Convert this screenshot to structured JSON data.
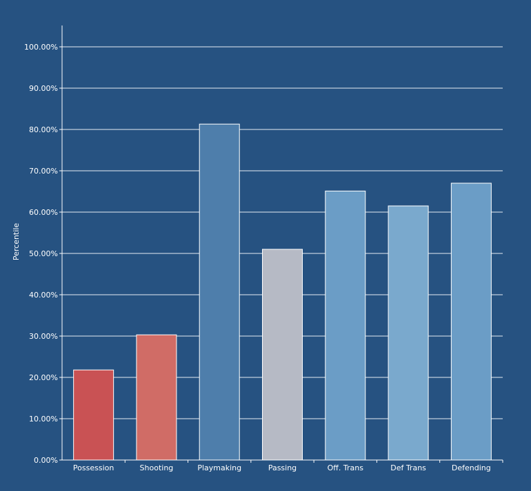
{
  "chart_data": {
    "type": "bar",
    "categories": [
      "Possession",
      "Shooting",
      "Playmaking",
      "Passing",
      "Off. Trans",
      "Def Trans",
      "Defending"
    ],
    "values": [
      21.8,
      30.3,
      81.3,
      51.0,
      65.1,
      61.5,
      67.0
    ],
    "colors": [
      "#c95254",
      "#d06c66",
      "#4e7eab",
      "#b6bac5",
      "#6b9dc6",
      "#7aa9cd",
      "#6b9dc6"
    ],
    "ylabel": "Percentile",
    "xlabel": "",
    "ylim": [
      0,
      105
    ],
    "yticks": [
      0,
      10,
      20,
      30,
      40,
      50,
      60,
      70,
      80,
      90,
      100
    ],
    "ytick_labels": [
      "0.00%",
      "10.00%",
      "20.00%",
      "30.00%",
      "40.00%",
      "50.00%",
      "60.00%",
      "70.00%",
      "80.00%",
      "90.00%",
      "100.00%"
    ],
    "grid": true,
    "legend": "none",
    "background": "#265281"
  }
}
